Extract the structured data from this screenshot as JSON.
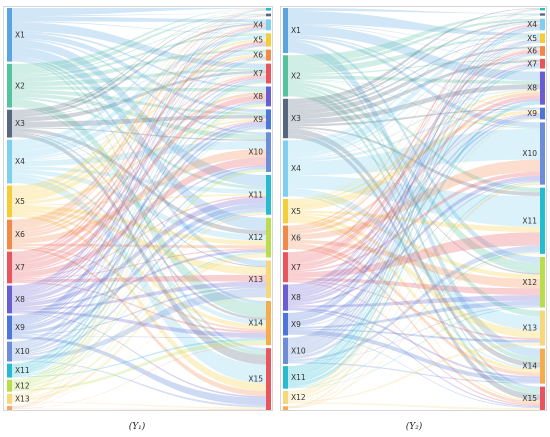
{
  "chart_data": [
    {
      "type": "sankey",
      "caption": "(Y₁)",
      "left_nodes": [
        {
          "label": "X1",
          "value": 27,
          "color": "#5aa5e0"
        },
        {
          "label": "X2",
          "value": 22,
          "color": "#56c3a0"
        },
        {
          "label": "X3",
          "value": 14,
          "color": "#56677f"
        },
        {
          "label": "X4",
          "value": 22,
          "color": "#7fcff0"
        },
        {
          "label": "X5",
          "value": 16,
          "color": "#f5cc3a"
        },
        {
          "label": "X6",
          "value": 15,
          "color": "#f08a4b"
        },
        {
          "label": "X7",
          "value": 16,
          "color": "#e9555c"
        },
        {
          "label": "X8",
          "value": 14,
          "color": "#6a5fd1"
        },
        {
          "label": "X9",
          "value": 12,
          "color": "#4e75d8"
        },
        {
          "label": "X10",
          "value": 10,
          "color": "#6c8ed9"
        },
        {
          "label": "X11",
          "value": 7,
          "color": "#25bccf"
        },
        {
          "label": "X12",
          "value": 6,
          "color": "#b9dd4e"
        },
        {
          "label": "X13",
          "value": 5,
          "color": "#f6d77c"
        },
        {
          "label": "",
          "value": 2,
          "color": "#f4a56e"
        }
      ],
      "right_nodes": [
        {
          "label": "",
          "value": 1.2,
          "color": "#25bccf"
        },
        {
          "label": "",
          "value": 1.2,
          "color": "#56677f"
        },
        {
          "label": "X4",
          "value": 5,
          "color": "#7fcff0"
        },
        {
          "label": "X5",
          "value": 6,
          "color": "#f5cc3a"
        },
        {
          "label": "X6",
          "value": 5,
          "color": "#f08a4b"
        },
        {
          "label": "X7",
          "value": 9,
          "color": "#e9555c"
        },
        {
          "label": "X8",
          "value": 9,
          "color": "#6a5fd1"
        },
        {
          "label": "X9",
          "value": 9,
          "color": "#4e75d8"
        },
        {
          "label": "X10",
          "value": 18,
          "color": "#6c8ed9"
        },
        {
          "label": "X11",
          "value": 18,
          "color": "#25bccf"
        },
        {
          "label": "X12",
          "value": 18,
          "color": "#b9dd4e"
        },
        {
          "label": "X13",
          "value": 17,
          "color": "#f6d77c"
        },
        {
          "label": "X14",
          "value": 20,
          "color": "#f5ac4e"
        },
        {
          "label": "X15",
          "value": 28,
          "color": "#e9555c"
        }
      ]
    },
    {
      "type": "sankey",
      "caption": "(Y₂)",
      "left_nodes": [
        {
          "label": "X1",
          "value": 24,
          "color": "#5aa5e0"
        },
        {
          "label": "X2",
          "value": 22,
          "color": "#56c3a0"
        },
        {
          "label": "X3",
          "value": 21,
          "color": "#56677f"
        },
        {
          "label": "X4",
          "value": 30,
          "color": "#7fcff0"
        },
        {
          "label": "X5",
          "value": 13,
          "color": "#f5cc3a"
        },
        {
          "label": "X6",
          "value": 13,
          "color": "#f08a4b"
        },
        {
          "label": "X7",
          "value": 16,
          "color": "#e9555c"
        },
        {
          "label": "X8",
          "value": 14,
          "color": "#6a5fd1"
        },
        {
          "label": "X9",
          "value": 12,
          "color": "#4e75d8"
        },
        {
          "label": "X10",
          "value": 14,
          "color": "#6c8ed9"
        },
        {
          "label": "X11",
          "value": 12,
          "color": "#25bccf"
        },
        {
          "label": "X12",
          "value": 7,
          "color": "#f6d77c"
        },
        {
          "label": "",
          "value": 2,
          "color": "#f5ac4e"
        }
      ],
      "right_nodes": [
        {
          "label": "",
          "value": 1.2,
          "color": "#25bccf"
        },
        {
          "label": "",
          "value": 1.2,
          "color": "#56677f"
        },
        {
          "label": "X4",
          "value": 6,
          "color": "#7fcff0"
        },
        {
          "label": "X5",
          "value": 5,
          "color": "#f5cc3a"
        },
        {
          "label": "X6",
          "value": 5,
          "color": "#f08a4b"
        },
        {
          "label": "X7",
          "value": 5,
          "color": "#e9555c"
        },
        {
          "label": "X8",
          "value": 17,
          "color": "#6a5fd1"
        },
        {
          "label": "X9",
          "value": 6,
          "color": "#4e75d8"
        },
        {
          "label": "X10",
          "value": 32,
          "color": "#6c8ed9"
        },
        {
          "label": "X11",
          "value": 34,
          "color": "#25bccf"
        },
        {
          "label": "X12",
          "value": 26,
          "color": "#b9dd4e"
        },
        {
          "label": "X13",
          "value": 18,
          "color": "#f6d77c"
        },
        {
          "label": "X14",
          "value": 18,
          "color": "#f5ac4e"
        },
        {
          "label": "X15",
          "value": 12,
          "color": "#e9555c"
        }
      ]
    }
  ]
}
